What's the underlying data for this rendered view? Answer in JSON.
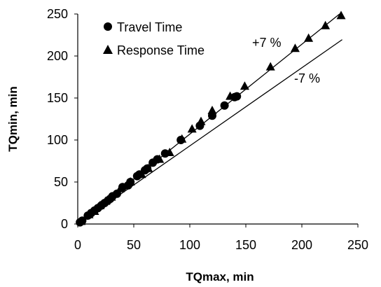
{
  "chart_data": {
    "type": "scatter",
    "title": "",
    "xlabel": "TQmax, min",
    "ylabel": "TQmin, min",
    "xlim": [
      0,
      250
    ],
    "ylim": [
      0,
      250
    ],
    "xticks": [
      0,
      50,
      100,
      150,
      200,
      250
    ],
    "yticks": [
      0,
      50,
      100,
      150,
      200,
      250
    ],
    "grid": false,
    "legend_position": "top-left",
    "series": [
      {
        "name": "Travel Time",
        "marker": "circle",
        "color": "#000000",
        "x": [
          2,
          4,
          9,
          12,
          15,
          18,
          21,
          24,
          27,
          29,
          31,
          35,
          40,
          45,
          47,
          53,
          55,
          60,
          62,
          67,
          71,
          78,
          92,
          109,
          120,
          131,
          140,
          142
        ],
        "y": [
          2,
          4,
          10,
          13,
          16,
          19,
          22,
          25,
          28,
          30,
          33,
          36,
          44,
          46,
          50,
          57,
          59,
          64,
          66,
          73,
          77,
          84,
          100,
          117,
          129,
          141,
          151,
          152
        ]
      },
      {
        "name": "Response Time",
        "marker": "triangle",
        "color": "#000000",
        "x": [
          3,
          10,
          15,
          20,
          25,
          30,
          38,
          47,
          57,
          63,
          73,
          82,
          93,
          102,
          110,
          120,
          136,
          149,
          172,
          194,
          206,
          221,
          235
        ],
        "y": [
          3,
          11,
          15,
          22,
          27,
          32,
          42,
          50,
          59,
          66,
          77,
          85,
          101,
          113,
          122,
          135,
          152,
          164,
          187,
          209,
          221,
          236,
          248
        ]
      }
    ],
    "reference_lines": [
      {
        "label": "+7 %",
        "slope": 1.07,
        "x_range": [
          0,
          236
        ]
      },
      {
        "label": "-7 %",
        "slope": 0.93,
        "x_range": [
          0,
          236
        ]
      }
    ]
  }
}
